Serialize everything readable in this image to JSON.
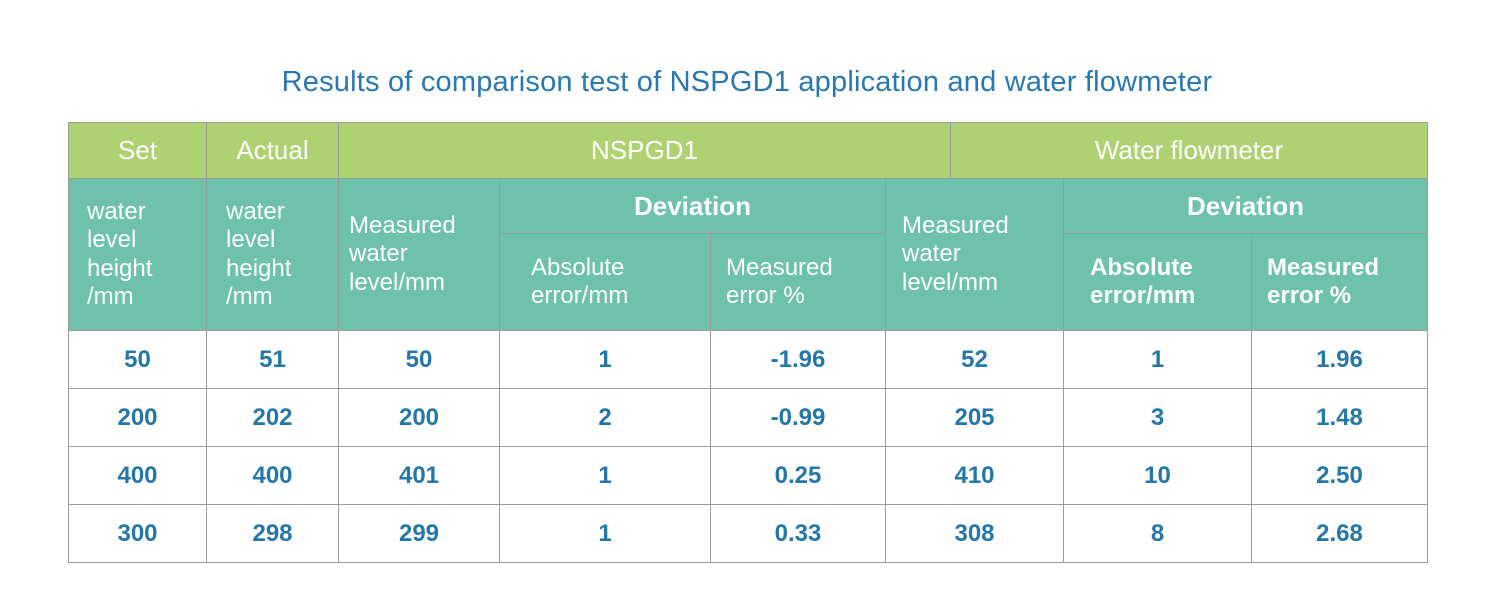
{
  "title": "Results of comparison test of NSPGD1 application and water flowmeter",
  "colors": {
    "title_blue": "#2878b2",
    "header_green": "#aed171",
    "header_teal": "#6ec2ab",
    "data_blue": "#2477a9",
    "grid_border": "#9b9b9b"
  },
  "header": {
    "set": "Set",
    "actual": "Actual",
    "nspgd1": "NSPGD1",
    "water_flowmeter": "Water flowmeter",
    "set_detail": "water\nlevel\nheight\n/mm",
    "actual_detail": "water\nlevel\nheight\n/mm",
    "measured_nspgd1": "Measured\nwater\nlevel/mm",
    "deviation_nspgd1": "Deviation",
    "abs_error_nspgd1": "Absolute\nerror/mm",
    "meas_error_nspgd1": "Measured\nerror %",
    "measured_flowmeter": "Measured\nwater\nlevel/mm",
    "deviation_flowmeter": "Deviation",
    "abs_error_flowmeter": "Absolute\nerror/mm",
    "meas_error_flowmeter": "Measured\nerror %"
  },
  "chart_data": {
    "type": "table",
    "title": "Results of comparison test of NSPGD1 application and water flowmeter",
    "column_groups": [
      "Set",
      "Actual",
      "NSPGD1",
      "Water flowmeter"
    ],
    "columns": [
      "Set water level height /mm",
      "Actual water level height /mm",
      "NSPGD1 Measured water level/mm",
      "NSPGD1 Deviation Absolute error/mm",
      "NSPGD1 Deviation Measured error %",
      "Water flowmeter Measured water level/mm",
      "Water flowmeter Deviation Absolute error/mm",
      "Water flowmeter Deviation Measured error %"
    ],
    "rows": [
      [
        "50",
        "51",
        "50",
        "1",
        "-1.96",
        "52",
        "1",
        "1.96"
      ],
      [
        "200",
        "202",
        "200",
        "2",
        "-0.99",
        "205",
        "3",
        "1.48"
      ],
      [
        "400",
        "400",
        "401",
        "1",
        "0.25",
        "410",
        "10",
        "2.50"
      ],
      [
        "300",
        "298",
        "299",
        "1",
        "0.33",
        "308",
        "8",
        "2.68"
      ]
    ]
  }
}
